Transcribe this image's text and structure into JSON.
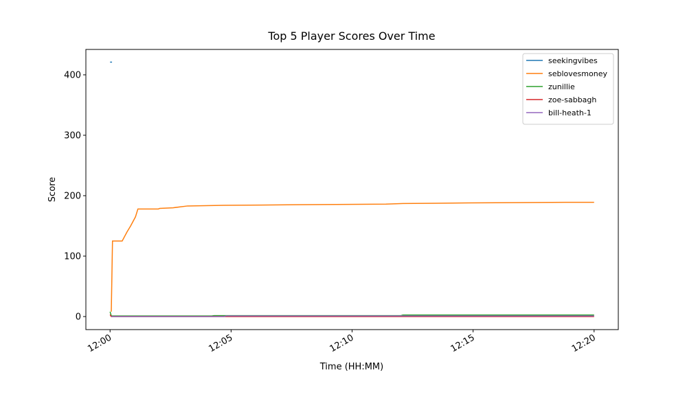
{
  "chart_data": {
    "type": "line",
    "title": "Top 5 Player Scores Over Time",
    "x_label": "Time (HH:MM)",
    "y_label": "Score",
    "xlim": [
      -1,
      21
    ],
    "ylim": [
      -21.6,
      442
    ],
    "xticks": [
      {
        "value": 0,
        "label": "12:00"
      },
      {
        "value": 5,
        "label": "12:05"
      },
      {
        "value": 10,
        "label": "12:10"
      },
      {
        "value": 15,
        "label": "12:15"
      },
      {
        "value": 20,
        "label": "12:20"
      }
    ],
    "yticks": [
      0,
      100,
      200,
      300,
      400
    ],
    "grid": false,
    "legend": "upper right",
    "series": [
      {
        "name": "seekingvibes",
        "color": "#1f77b4",
        "x": [
          0,
          0.08
        ],
        "values": [
          421,
          421
        ]
      },
      {
        "name": "seblovesmoney",
        "color": "#ff7f0e",
        "x": [
          0.05,
          0.1,
          0.5,
          0.7,
          0.85,
          1.05,
          1.15,
          2.0,
          2.05,
          2.6,
          3.2,
          4.7,
          7.7,
          11.4,
          12.1,
          14.8,
          18.8,
          20
        ],
        "values": [
          8,
          125,
          125,
          140,
          150,
          165,
          178,
          178,
          179,
          180,
          183,
          184,
          185,
          186,
          187,
          188,
          189,
          189
        ]
      },
      {
        "name": "zunillie",
        "color": "#2ca02c",
        "x": [
          0,
          0.05,
          4.2,
          4.3,
          12,
          12.1,
          20
        ],
        "values": [
          8,
          1,
          1,
          1.5,
          1.5,
          2.5,
          2.5
        ]
      },
      {
        "name": "zoe-sabbagh",
        "color": "#d62728",
        "x": [
          0,
          0.05,
          20
        ],
        "values": [
          3,
          0,
          0
        ]
      },
      {
        "name": "bill-heath-1",
        "color": "#9467bd",
        "x": [
          0.05,
          4.7,
          4.8,
          20
        ],
        "values": [
          0,
          0,
          1,
          1
        ]
      }
    ]
  }
}
